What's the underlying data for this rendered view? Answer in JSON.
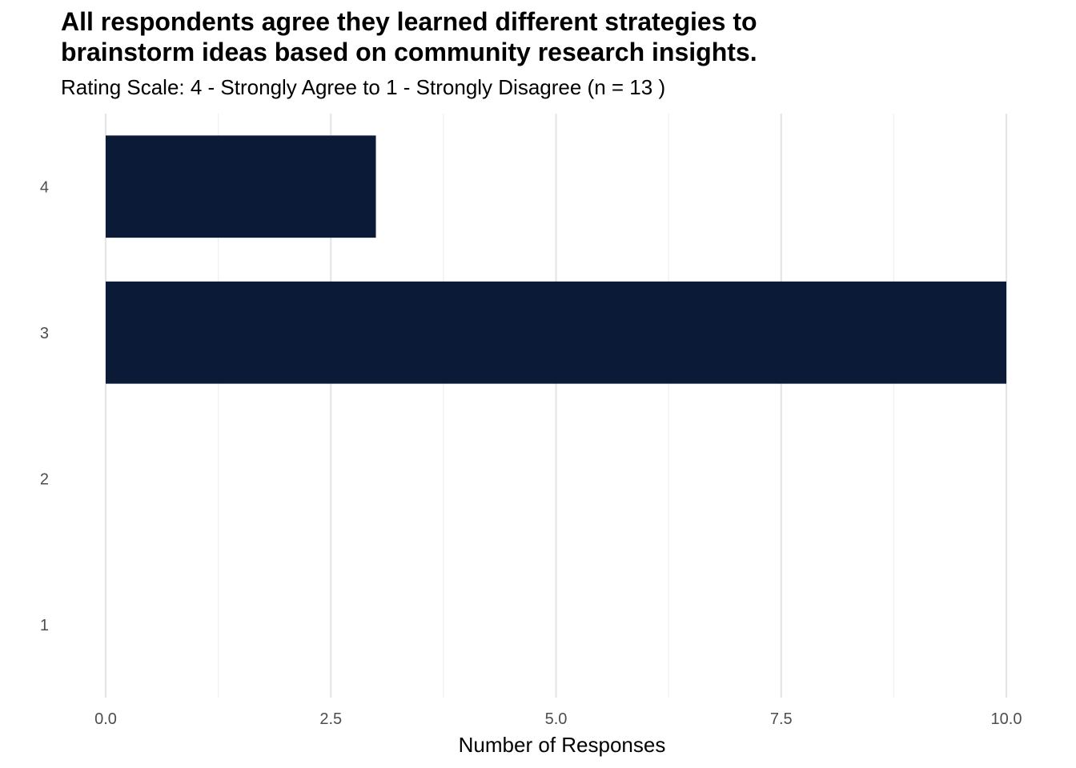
{
  "chart_data": {
    "type": "bar",
    "orientation": "horizontal",
    "title": "All respondents agree they learned different strategies to brainstorm ideas based on community research insights.",
    "title_lines": [
      "All respondents agree they learned different strategies to",
      "brainstorm ideas based on community research insights."
    ],
    "subtitle": "Rating Scale: 4 - Strongly Agree to 1 - Strongly Disagree (n = 13 )",
    "categories": [
      "4",
      "3",
      "2",
      "1"
    ],
    "values": [
      3,
      10,
      0,
      0
    ],
    "xlabel": "Number of Responses",
    "ylabel": "",
    "xlim": [
      0,
      10
    ],
    "x_ticks": [
      0,
      2.5,
      5,
      7.5,
      10
    ],
    "x_tick_labels": [
      "0.0",
      "2.5",
      "5.0",
      "7.5",
      "10.0"
    ],
    "grid": "vertical",
    "legend": "none",
    "bar_color": "#0a1a37"
  }
}
